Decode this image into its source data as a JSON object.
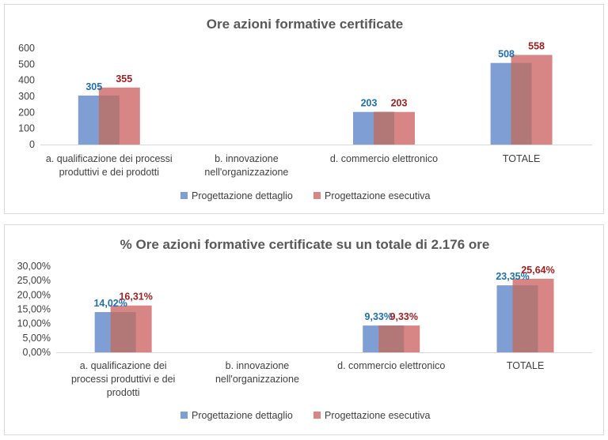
{
  "colors": {
    "series1": "#7f9fd4",
    "series2": "#d88585",
    "overlap": "#b27777",
    "label1": "#1f6fb2",
    "label2": "#a31f1f",
    "axis": "#d9d9d9"
  },
  "chart_data": [
    {
      "type": "bar",
      "title": "Ore azioni formative certificate",
      "categories": [
        [
          "a. qualificazione dei processi",
          "produttivi e dei prodotti"
        ],
        [
          "b. innovazione",
          "nell'organizzazione"
        ],
        [
          "d. commercio elettronico"
        ],
        [
          "TOTALE"
        ]
      ],
      "series": [
        {
          "name": "Progettazione dettaglio",
          "values": [
            305,
            null,
            203,
            508
          ],
          "labels": [
            "305",
            "",
            "203",
            "508"
          ]
        },
        {
          "name": "Progettazione esecutiva",
          "values": [
            355,
            null,
            203,
            558
          ],
          "labels": [
            "355",
            "",
            "203",
            "558"
          ]
        }
      ],
      "ylim": [
        0,
        600
      ],
      "yticks": [
        0,
        100,
        200,
        300,
        400,
        500,
        600
      ],
      "ytick_labels": [
        "0",
        "100",
        "200",
        "300",
        "400",
        "500",
        "600"
      ],
      "grid": false,
      "legend": "bottom"
    },
    {
      "type": "bar",
      "title": "% Ore azioni formative certificate su un totale di 2.176 ore",
      "categories": [
        [
          "a. qualificazione dei",
          "processi produttivi e dei",
          "prodotti"
        ],
        [
          "b. innovazione",
          "nell'organizzazione"
        ],
        [
          "d. commercio elettronico"
        ],
        [
          "TOTALE"
        ]
      ],
      "series": [
        {
          "name": "Progettazione dettaglio",
          "values": [
            14.02,
            null,
            9.33,
            23.35
          ],
          "labels": [
            "14,02%",
            "",
            "9,33%",
            "23,35%"
          ]
        },
        {
          "name": "Progettazione esecutiva",
          "values": [
            16.31,
            null,
            9.33,
            25.64
          ],
          "labels": [
            "16,31%",
            "",
            "9,33%",
            "25,64%"
          ]
        }
      ],
      "ylim": [
        0,
        30
      ],
      "yticks": [
        0,
        5,
        10,
        15,
        20,
        25,
        30
      ],
      "ytick_labels": [
        "0,00%",
        "5,00%",
        "10,00%",
        "15,00%",
        "20,00%",
        "25,00%",
        "30,00%"
      ],
      "grid": false,
      "legend": "bottom"
    }
  ]
}
